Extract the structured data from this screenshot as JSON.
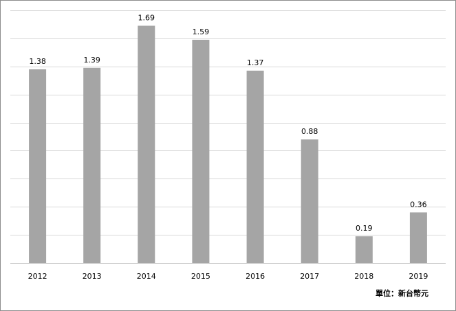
{
  "chart_data": {
    "type": "bar",
    "title": "",
    "xlabel": "",
    "ylabel": "",
    "unit_note": "單位：新台幣元",
    "categories": [
      "2012",
      "2013",
      "2014",
      "2015",
      "2016",
      "2017",
      "2018",
      "2019"
    ],
    "values": [
      1.38,
      1.39,
      1.69,
      1.59,
      1.37,
      0.88,
      0.19,
      0.36
    ],
    "data_labels": [
      "1.38",
      "1.39",
      "1.69",
      "1.59",
      "1.37",
      "0.88",
      "0.19",
      "0.36"
    ],
    "ylim": [
      0,
      1.8
    ],
    "y_gridline_step": 0.2,
    "y_tick_labels_shown": false,
    "grid": true,
    "legend": "none",
    "bar_color": "#a5a5a5",
    "grid_color": "#d9d9d9"
  }
}
